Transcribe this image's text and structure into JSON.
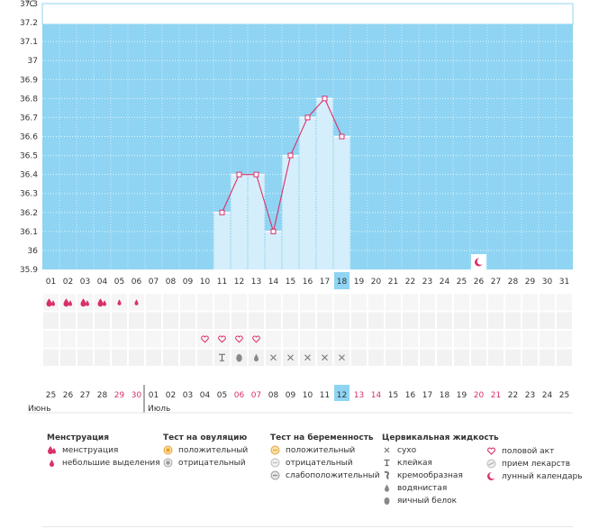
{
  "chart_data": {
    "type": "bar",
    "ylabel": "°C",
    "y_ticks": [
      "37.3",
      "37.2",
      "37.1",
      "37",
      "36.9",
      "36.8",
      "36.7",
      "36.6",
      "36.5",
      "36.4",
      "36.3",
      "36.2",
      "36.1",
      "36",
      "35.9"
    ],
    "ylim": [
      35.9,
      37.3
    ],
    "grid": true,
    "day_labels": [
      "01",
      "02",
      "03",
      "04",
      "05",
      "06",
      "07",
      "08",
      "09",
      "10",
      "11",
      "12",
      "13",
      "14",
      "15",
      "16",
      "17",
      "18",
      "19",
      "20",
      "21",
      "22",
      "23",
      "24",
      "25",
      "26",
      "27",
      "28",
      "29",
      "30",
      "31"
    ],
    "selected_day": "18",
    "series": [
      {
        "x": [
          "11",
          "12",
          "13",
          "14",
          "15",
          "16",
          "17",
          "18"
        ],
        "values": [
          36.2,
          36.4,
          36.4,
          36.1,
          36.5,
          36.7,
          36.8,
          36.6
        ]
      }
    ],
    "moon_day": "26",
    "colors": {
      "background": "#8fd4f2",
      "bar": "#d5eefb",
      "line": "#d9306b",
      "selected": "#8fd4f2"
    }
  },
  "markers": {
    "menstruation": [
      {
        "day": "01",
        "type": "heavy"
      },
      {
        "day": "02",
        "type": "heavy"
      },
      {
        "day": "03",
        "type": "heavy"
      },
      {
        "day": "04",
        "type": "heavy"
      },
      {
        "day": "05",
        "type": "light"
      },
      {
        "day": "06",
        "type": "light"
      }
    ],
    "intercourse_days": [
      "10",
      "11",
      "12",
      "13"
    ],
    "cervical": [
      {
        "day": "11",
        "type": "sticky"
      },
      {
        "day": "12",
        "type": "eggwhite"
      },
      {
        "day": "13",
        "type": "watery"
      },
      {
        "day": "14",
        "type": "dry"
      },
      {
        "day": "15",
        "type": "dry"
      },
      {
        "day": "16",
        "type": "dry"
      },
      {
        "day": "17",
        "type": "dry"
      },
      {
        "day": "18",
        "type": "dry"
      }
    ]
  },
  "dates": {
    "labels": [
      "25",
      "26",
      "27",
      "28",
      "29",
      "30",
      "01",
      "02",
      "03",
      "04",
      "05",
      "06",
      "07",
      "08",
      "09",
      "10",
      "11",
      "12",
      "13",
      "14",
      "15",
      "16",
      "17",
      "18",
      "19",
      "20",
      "21",
      "22",
      "23",
      "24",
      "25"
    ],
    "red": [
      4,
      5,
      11,
      12,
      18,
      19,
      25,
      26
    ],
    "selected_index": 17,
    "month_june": "Июнь",
    "month_july": "Июль"
  },
  "legend": {
    "menstruation": {
      "title": "Менструация",
      "items": [
        "менструация",
        "небольшие выделения"
      ]
    },
    "ovulation": {
      "title": "Тест на овуляцию",
      "items": [
        "положительный",
        "отрицательный"
      ]
    },
    "pregnancy": {
      "title": "Тест на беременность",
      "items": [
        "положительный",
        "отрицательный",
        "слабоположительный"
      ]
    },
    "cervical": {
      "title": "Цервикальная жидкость",
      "items": [
        "сухо",
        "клейкая",
        "кремообразная",
        "водянистая",
        "яичный белок"
      ]
    },
    "other": {
      "items": [
        "половой акт",
        "прием лекарств",
        "лунный календарь"
      ]
    }
  }
}
